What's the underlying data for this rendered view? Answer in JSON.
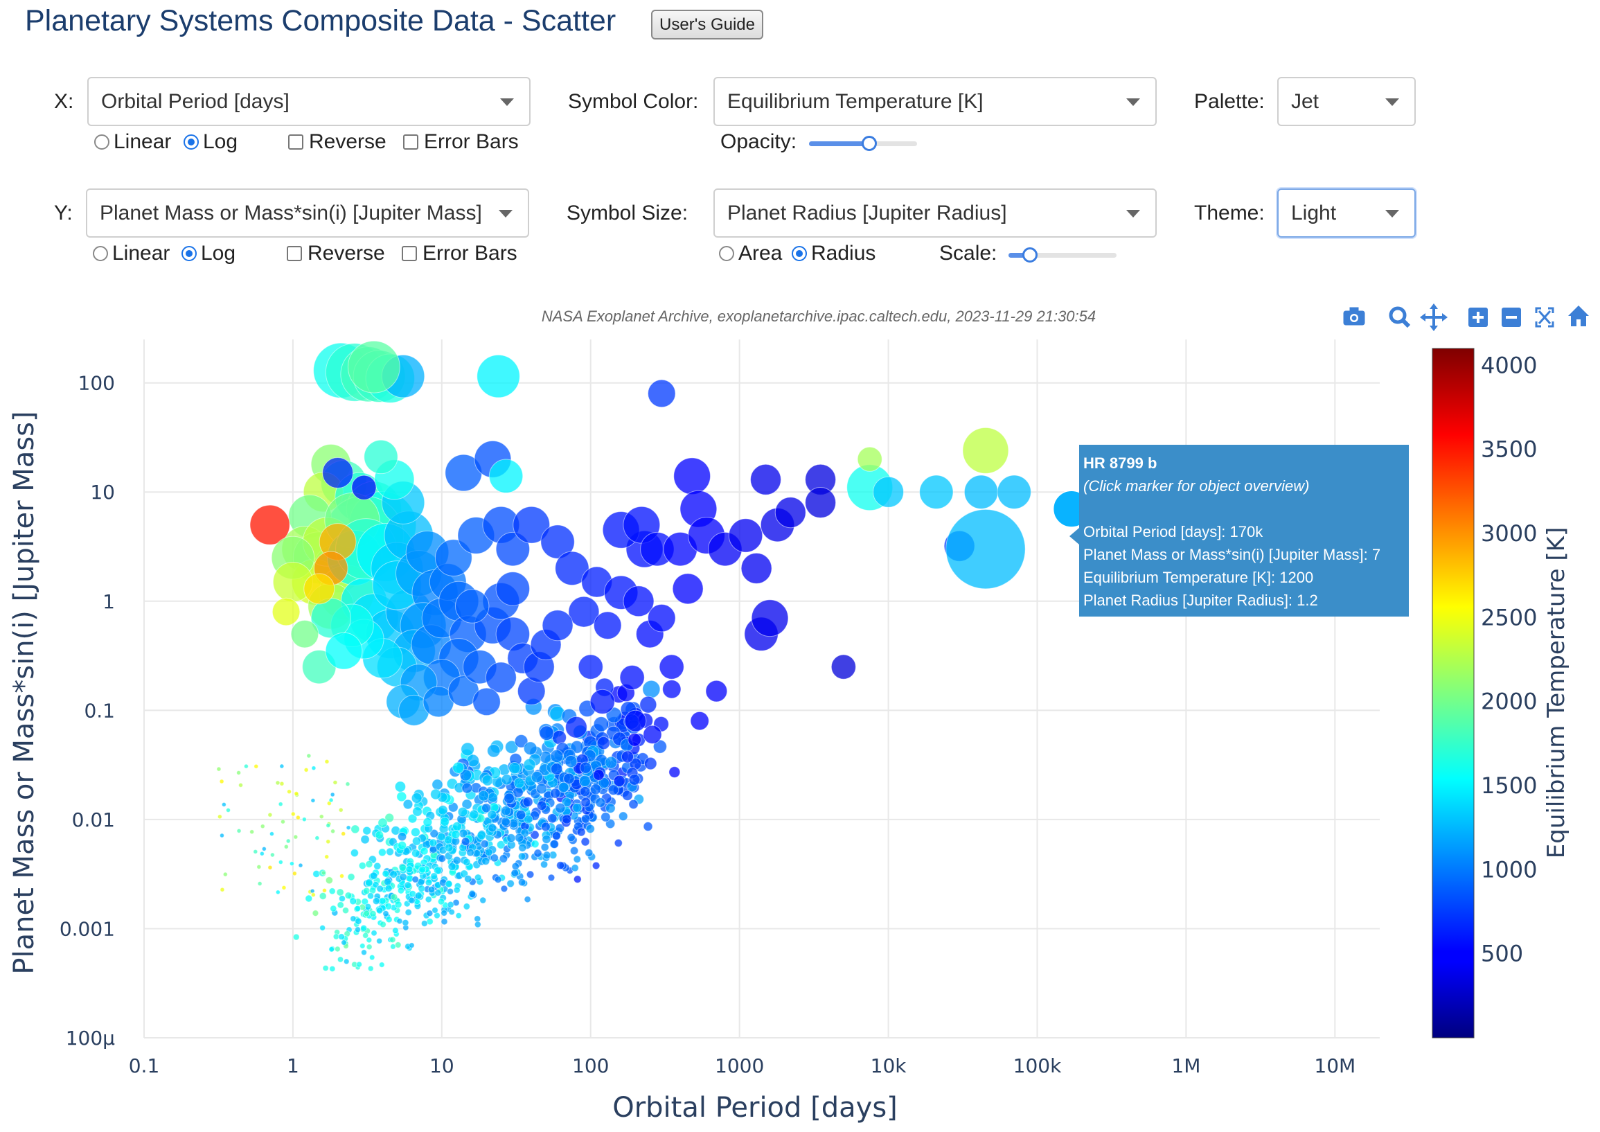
{
  "page": {
    "title": "Planetary Systems Composite Data - Scatter",
    "users_guide": "User's Guide"
  },
  "controls": {
    "x": {
      "label": "X:",
      "value": "Orbital Period [days]",
      "scale_linear": "Linear",
      "scale_log": "Log",
      "selected_scale": "Log",
      "reverse": "Reverse",
      "error_bars": "Error Bars"
    },
    "y": {
      "label": "Y:",
      "value": "Planet Mass or Mass*sin(i) [Jupiter Mass]",
      "scale_linear": "Linear",
      "scale_log": "Log",
      "selected_scale": "Log",
      "reverse": "Reverse",
      "error_bars": "Error Bars"
    },
    "color": {
      "label": "Symbol Color:",
      "value": "Equilibrium Temperature [K]",
      "opacity_label": "Opacity:",
      "opacity": 0.55
    },
    "size": {
      "label": "Symbol Size:",
      "value": "Planet Radius [Jupiter Radius]",
      "area": "Area",
      "radius": "Radius",
      "selected": "Radius",
      "scale_label": "Scale:",
      "scale": 0.2
    },
    "palette": {
      "label": "Palette:",
      "value": "Jet"
    },
    "theme": {
      "label": "Theme:",
      "value": "Light"
    }
  },
  "toolbar": {
    "icons": [
      "camera-icon",
      "zoom-icon",
      "pan-icon",
      "zoom-in-icon",
      "zoom-out-icon",
      "autoscale-icon",
      "reset-home-icon"
    ],
    "color": "#3c7fd6"
  },
  "tooltip": {
    "title": "HR 8799 b",
    "subtitle": "(Click marker for object overview)",
    "lines": [
      "Orbital Period [days]: 170k",
      "Planet Mass or Mass*sin(i) [Jupiter Mass]: 7",
      "Equilibrium Temperature [K]: 1200",
      "Planet Radius [Jupiter Radius]: 1.2"
    ],
    "background": "#3b8ec9"
  },
  "chart_data": {
    "type": "scatter",
    "source_note": "NASA Exoplanet Archive, exoplanetarchive.ipac.caltech.edu, 2023-11-29 21:30:54",
    "xlabel": "Orbital Period [days]",
    "ylabel": "Planet Mass or Mass*sin(i) [Jupiter Mass]",
    "x_scale": "log",
    "y_scale": "log",
    "xlim": [
      0.1,
      20000000
    ],
    "ylim": [
      0.0001,
      250
    ],
    "x_ticks": [
      {
        "v": 0.1,
        "label": "0.1"
      },
      {
        "v": 1,
        "label": "1"
      },
      {
        "v": 10,
        "label": "10"
      },
      {
        "v": 100,
        "label": "100"
      },
      {
        "v": 1000,
        "label": "1000"
      },
      {
        "v": 10000,
        "label": "10k"
      },
      {
        "v": 100000,
        "label": "100k"
      },
      {
        "v": 1000000,
        "label": "1M"
      },
      {
        "v": 10000000,
        "label": "10M"
      }
    ],
    "y_ticks": [
      {
        "v": 100,
        "label": "100"
      },
      {
        "v": 10,
        "label": "10"
      },
      {
        "v": 1,
        "label": "1"
      },
      {
        "v": 0.1,
        "label": "0.1"
      },
      {
        "v": 0.01,
        "label": "0.01"
      },
      {
        "v": 0.001,
        "label": "0.001"
      },
      {
        "v": 0.0001,
        "label": "100μ"
      }
    ],
    "grid": true,
    "colorbar": {
      "title": "Equilibrium Temperature [K]",
      "min": 0,
      "max": 4100,
      "ticks": [
        500,
        1000,
        1500,
        2000,
        2500,
        3000,
        3500,
        4000
      ],
      "palette": "Jet"
    },
    "highlighted": {
      "name": "HR 8799 b",
      "x": 170000,
      "y": 7,
      "t": 1200,
      "r": 1.2
    },
    "points": [
      [
        2.1,
        130,
        1600,
        1.8
      ],
      [
        2.6,
        125,
        1700,
        1.9
      ],
      [
        3.2,
        120,
        1800,
        1.8
      ],
      [
        3.8,
        115,
        1750,
        1.7
      ],
      [
        4.5,
        110,
        1650,
        1.6
      ],
      [
        5.5,
        115,
        1200,
        1.4
      ],
      [
        3.5,
        140,
        1900,
        1.7
      ],
      [
        24,
        115,
        1500,
        1.4
      ],
      [
        300,
        80,
        700,
        0.9
      ],
      [
        1.8,
        18,
        2100,
        1.3
      ],
      [
        2.2,
        12,
        1800,
        1.5
      ],
      [
        1.6,
        10,
        2300,
        1.3
      ],
      [
        2.8,
        9,
        1700,
        1.6
      ],
      [
        3.5,
        7,
        1800,
        1.8
      ],
      [
        4.0,
        5,
        1600,
        2.2
      ],
      [
        3.0,
        4,
        1750,
        2.6
      ],
      [
        1.3,
        6,
        2000,
        1.4
      ],
      [
        1.2,
        3,
        2200,
        1.5
      ],
      [
        1.5,
        2.5,
        2100,
        1.7
      ],
      [
        2.0,
        2.0,
        2000,
        1.6
      ],
      [
        1.4,
        1.5,
        2400,
        1.5
      ],
      [
        2.3,
        1.2,
        2300,
        1.8
      ],
      [
        1.8,
        0.9,
        2200,
        1.5
      ],
      [
        1.7,
        3.5,
        2300,
        1.6
      ],
      [
        2.5,
        5.5,
        2000,
        1.8
      ],
      [
        0.7,
        5.0,
        3500,
        1.3
      ],
      [
        1.0,
        2.5,
        2100,
        1.4
      ],
      [
        1.0,
        1.5,
        2350,
        1.3
      ],
      [
        2.6,
        2.5,
        1600,
        1.8
      ],
      [
        3.1,
        3.0,
        1700,
        2.0
      ],
      [
        4.2,
        2.8,
        1500,
        1.9
      ],
      [
        5.0,
        2.0,
        1350,
        1.7
      ],
      [
        6.0,
        4.0,
        1250,
        1.6
      ],
      [
        5.5,
        8.0,
        1300,
        1.4
      ],
      [
        4.8,
        13,
        1600,
        1.3
      ],
      [
        3.9,
        21,
        1700,
        1.1
      ],
      [
        3.0,
        1.0,
        1500,
        1.5
      ],
      [
        3.5,
        0.7,
        1400,
        1.6
      ],
      [
        4.5,
        0.5,
        1300,
        1.6
      ],
      [
        6.0,
        0.8,
        1200,
        1.5
      ],
      [
        5.0,
        1.4,
        1350,
        1.6
      ],
      [
        7.0,
        1.8,
        1150,
        1.5
      ],
      [
        8.0,
        2.8,
        1050,
        1.4
      ],
      [
        9.0,
        1.2,
        1000,
        1.5
      ],
      [
        7.5,
        0.6,
        1100,
        1.5
      ],
      [
        6.5,
        0.35,
        1200,
        1.4
      ],
      [
        5.0,
        0.25,
        1300,
        1.3
      ],
      [
        4.0,
        0.3,
        1400,
        1.3
      ],
      [
        3.0,
        0.45,
        1500,
        1.3
      ],
      [
        2.5,
        0.6,
        1600,
        1.4
      ],
      [
        1.8,
        0.7,
        1700,
        1.3
      ],
      [
        1.5,
        0.25,
        1800,
        1.1
      ],
      [
        2.2,
        0.35,
        1550,
        1.2
      ],
      [
        8.5,
        0.4,
        1000,
        1.3
      ],
      [
        10,
        0.7,
        950,
        1.3
      ],
      [
        11,
        1.5,
        950,
        1.2
      ],
      [
        12,
        2.5,
        900,
        1.2
      ],
      [
        13,
        1.0,
        900,
        1.3
      ],
      [
        15,
        0.5,
        850,
        1.2
      ],
      [
        13,
        0.3,
        900,
        1.3
      ],
      [
        10,
        0.2,
        950,
        1.2
      ],
      [
        7,
        0.18,
        1100,
        1.2
      ],
      [
        5.5,
        0.12,
        1200,
        1.1
      ],
      [
        6.5,
        0.1,
        1150,
        1.0
      ],
      [
        9.5,
        0.12,
        1000,
        1.0
      ],
      [
        14,
        0.15,
        900,
        1.0
      ],
      [
        18,
        0.25,
        850,
        1.1
      ],
      [
        22,
        0.6,
        800,
        1.2
      ],
      [
        25,
        1.0,
        800,
        1.2
      ],
      [
        30,
        0.5,
        750,
        1.1
      ],
      [
        35,
        0.3,
        720,
        1.0
      ],
      [
        25,
        0.2,
        780,
        1.0
      ],
      [
        20,
        0.12,
        820,
        0.9
      ],
      [
        40,
        0.15,
        700,
        0.9
      ],
      [
        45,
        0.25,
        690,
        1.0
      ],
      [
        50,
        0.4,
        680,
        1.0
      ],
      [
        17,
        4.0,
        850,
        1.2
      ],
      [
        25,
        5.0,
        780,
        1.2
      ],
      [
        30,
        3.0,
        760,
        1.1
      ],
      [
        14,
        15,
        850,
        1.2
      ],
      [
        22,
        20,
        800,
        1.2
      ],
      [
        27,
        14,
        1500,
        1.1
      ],
      [
        40,
        5,
        700,
        1.2
      ],
      [
        60,
        3.5,
        650,
        1.1
      ],
      [
        75,
        2.0,
        620,
        1.1
      ],
      [
        90,
        0.8,
        600,
        1.0
      ],
      [
        110,
        1.5,
        580,
        1.0
      ],
      [
        130,
        0.6,
        560,
        0.9
      ],
      [
        160,
        1.2,
        540,
        1.1
      ],
      [
        210,
        1.0,
        520,
        1.0
      ],
      [
        250,
        0.5,
        500,
        0.9
      ],
      [
        230,
        3.0,
        520,
        1.2
      ],
      [
        160,
        4.5,
        540,
        1.2
      ],
      [
        220,
        5.0,
        520,
        1.2
      ],
      [
        280,
        3.0,
        500,
        1.1
      ],
      [
        400,
        3.0,
        470,
        1.1
      ],
      [
        480,
        14,
        450,
        1.2
      ],
      [
        530,
        7,
        450,
        1.2
      ],
      [
        600,
        4,
        440,
        1.2
      ],
      [
        800,
        3,
        420,
        1.1
      ],
      [
        1100,
        4,
        400,
        1.1
      ],
      [
        1300,
        2.0,
        400,
        1.0
      ],
      [
        1400,
        0.5,
        390,
        1.1
      ],
      [
        1600,
        0.7,
        390,
        1.2
      ],
      [
        1800,
        5.0,
        380,
        1.1
      ],
      [
        2200,
        6.5,
        370,
        1.0
      ],
      [
        1500,
        13,
        380,
        1.0
      ],
      [
        3500,
        13,
        340,
        1.0
      ],
      [
        3500,
        8,
        340,
        1.0
      ],
      [
        5000,
        0.25,
        320,
        0.8
      ],
      [
        700,
        0.15,
        440,
        0.7
      ],
      [
        540,
        0.08,
        450,
        0.6
      ],
      [
        450,
        1.3,
        460,
        1.0
      ],
      [
        300,
        0.7,
        500,
        0.9
      ],
      [
        350,
        0.25,
        480,
        0.8
      ],
      [
        190,
        0.2,
        520,
        0.8
      ],
      [
        120,
        0.12,
        560,
        0.8
      ],
      [
        80,
        0.07,
        600,
        0.7
      ],
      [
        200,
        0.08,
        520,
        0.7
      ],
      [
        260,
        0.06,
        500,
        0.6
      ],
      [
        100,
        0.25,
        580,
        0.8
      ],
      [
        60,
        0.6,
        650,
        1.0
      ],
      [
        30,
        1.3,
        760,
        1.1
      ],
      [
        16,
        0.9,
        860,
        1.1
      ],
      [
        7500,
        11,
        1600,
        1.5
      ],
      [
        10000,
        10,
        1300,
        1.0
      ],
      [
        7500,
        20,
        2200,
        0.8
      ],
      [
        21000,
        10,
        1300,
        1.1
      ],
      [
        42000,
        10,
        1250,
        1.1
      ],
      [
        70000,
        10,
        1250,
        1.1
      ],
      [
        45000,
        24,
        2300,
        1.5
      ],
      [
        30000,
        3.2,
        700,
        1.0
      ],
      [
        45000,
        3.0,
        1250,
        2.6
      ],
      [
        170000,
        7,
        1200,
        1.2
      ],
      [
        2.0,
        15,
        600,
        1.0
      ],
      [
        3.0,
        11,
        500,
        0.8
      ],
      [
        2.0,
        3.5,
        2900,
        1.2
      ],
      [
        1.8,
        2.0,
        3000,
        1.1
      ],
      [
        1.5,
        1.3,
        2700,
        1.0
      ],
      [
        0.9,
        0.8,
        2450,
        0.9
      ],
      [
        1.2,
        0.5,
        2000,
        0.9
      ]
    ]
  }
}
